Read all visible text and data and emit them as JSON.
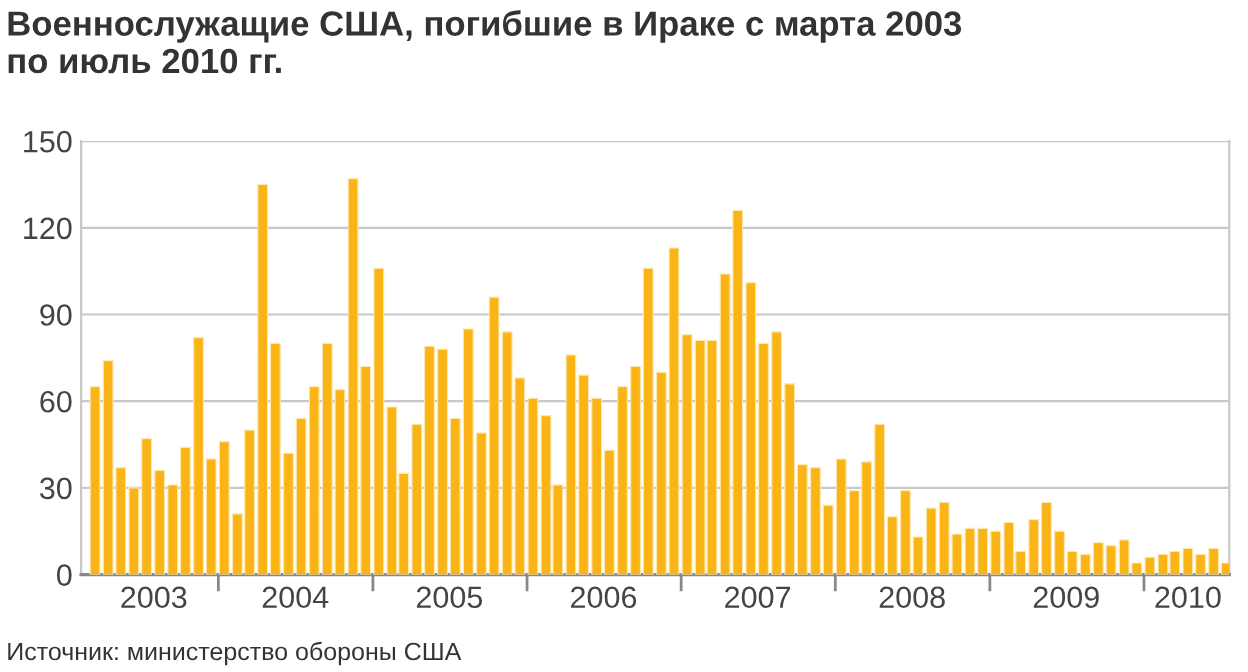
{
  "chart_data": {
    "type": "bar",
    "title": "Военнослужащие США, погибшие в Ираке с марта 2003\nпо июль 2010 гг.",
    "annotations": [
      "Источник: министерство обороны США"
    ],
    "x": [
      "2003-03",
      "2003-04",
      "2003-05",
      "2003-06",
      "2003-07",
      "2003-08",
      "2003-09",
      "2003-10",
      "2003-11",
      "2003-12",
      "2004-01",
      "2004-02",
      "2004-03",
      "2004-04",
      "2004-05",
      "2004-06",
      "2004-07",
      "2004-08",
      "2004-09",
      "2004-10",
      "2004-11",
      "2004-12",
      "2005-01",
      "2005-02",
      "2005-03",
      "2005-04",
      "2005-05",
      "2005-06",
      "2005-07",
      "2005-08",
      "2005-09",
      "2005-10",
      "2005-11",
      "2005-12",
      "2006-01",
      "2006-02",
      "2006-03",
      "2006-04",
      "2006-05",
      "2006-06",
      "2006-07",
      "2006-08",
      "2006-09",
      "2006-10",
      "2006-11",
      "2006-12",
      "2007-01",
      "2007-02",
      "2007-03",
      "2007-04",
      "2007-05",
      "2007-06",
      "2007-07",
      "2007-08",
      "2007-09",
      "2007-10",
      "2007-11",
      "2007-12",
      "2008-01",
      "2008-02",
      "2008-03",
      "2008-04",
      "2008-05",
      "2008-06",
      "2008-07",
      "2008-08",
      "2008-09",
      "2008-10",
      "2008-11",
      "2008-12",
      "2009-01",
      "2009-02",
      "2009-03",
      "2009-04",
      "2009-05",
      "2009-06",
      "2009-07",
      "2009-08",
      "2009-09",
      "2009-10",
      "2009-11",
      "2009-12",
      "2010-01",
      "2010-02",
      "2010-03",
      "2010-04",
      "2010-05",
      "2010-06",
      "2010-07"
    ],
    "values": [
      65,
      74,
      37,
      30,
      47,
      36,
      31,
      44,
      82,
      40,
      46,
      21,
      50,
      135,
      80,
      42,
      54,
      65,
      80,
      64,
      137,
      72,
      106,
      58,
      35,
      52,
      79,
      78,
      54,
      85,
      49,
      96,
      84,
      68,
      61,
      55,
      31,
      76,
      69,
      61,
      43,
      65,
      72,
      106,
      70,
      113,
      83,
      81,
      81,
      104,
      126,
      101,
      80,
      84,
      66,
      38,
      37,
      24,
      40,
      29,
      39,
      52,
      20,
      29,
      13,
      23,
      25,
      14,
      16,
      16,
      15,
      18,
      8,
      19,
      25,
      15,
      8,
      7,
      11,
      10,
      12,
      4,
      6,
      7,
      8,
      9,
      7,
      9,
      4
    ],
    "color": "#fbb416",
    "xlim": [
      "2003-02-10",
      "2010-07-22"
    ],
    "xticks": [
      {
        "value": "2003-08-01",
        "label": "2003"
      },
      {
        "value": "2004-01-01",
        "label": null
      },
      {
        "value": "2004-07-01",
        "label": "2004"
      },
      {
        "value": "2005-01-01",
        "label": null
      },
      {
        "value": "2005-07-01",
        "label": "2005"
      },
      {
        "value": "2006-01-01",
        "label": null
      },
      {
        "value": "2006-07-01",
        "label": "2006"
      },
      {
        "value": "2007-01-01",
        "label": null
      },
      {
        "value": "2007-07-01",
        "label": "2007"
      },
      {
        "value": "2008-01-01",
        "label": null
      },
      {
        "value": "2008-07-01",
        "label": "2008"
      },
      {
        "value": "2009-01-01",
        "label": null
      },
      {
        "value": "2009-07-01",
        "label": "2009"
      },
      {
        "value": "2010-01-01",
        "label": null
      },
      {
        "value": "2010-04-15",
        "label": "2010"
      }
    ],
    "ylim": [
      0,
      150
    ],
    "yticks": [
      0,
      30,
      60,
      90,
      120,
      150
    ],
    "grid": "y"
  }
}
